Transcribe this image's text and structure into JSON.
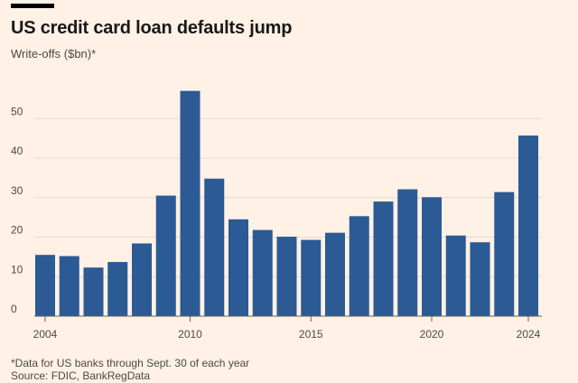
{
  "header": {
    "title": "US credit card loan defaults jump",
    "subtitle": "Write-offs ($bn)*"
  },
  "footer": {
    "footnote": "*Data for US banks through Sept. 30 of each year",
    "source": "Source: FDIC, BankRegData"
  },
  "colors": {
    "bar": "#2b5a94",
    "background": "#fff1e5",
    "grid": "#e6d9ce",
    "baseline": "#66605c",
    "accent_rule": "#000000"
  },
  "chart_data": {
    "type": "bar",
    "title": "US credit card loan defaults jump",
    "ylabel": "Write-offs ($bn)*",
    "xlabel": "",
    "ylim": [
      0,
      60
    ],
    "yticks": [
      0,
      10,
      20,
      30,
      40,
      50
    ],
    "xtick_labels": [
      "2004",
      "2010",
      "2015",
      "2020",
      "2024"
    ],
    "grid": true,
    "categories": [
      "2004",
      "2005",
      "2006",
      "2007",
      "2008",
      "2009",
      "2010",
      "2011",
      "2012",
      "2013",
      "2014",
      "2015",
      "2016",
      "2017",
      "2018",
      "2019",
      "2020",
      "2021",
      "2022",
      "2023",
      "2024"
    ],
    "values": [
      15.5,
      15.2,
      12.3,
      13.7,
      18.4,
      30.5,
      57,
      34.8,
      24.5,
      21.8,
      20.1,
      19.3,
      21.1,
      25.3,
      29.0,
      32.1,
      30.1,
      20.4,
      18.7,
      31.4,
      45.7
    ]
  }
}
